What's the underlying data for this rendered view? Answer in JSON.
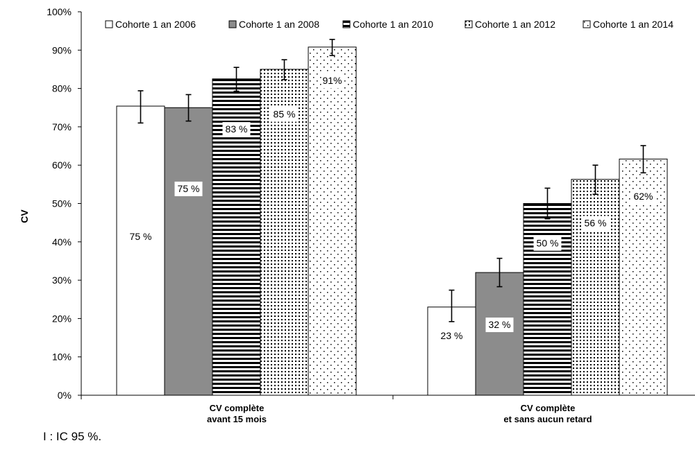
{
  "chart_data": {
    "type": "bar",
    "ylabel": "CV",
    "xlabel": "",
    "ylim": [
      0,
      100
    ],
    "y_ticks": [
      "0%",
      "10%",
      "20%",
      "30%",
      "40%",
      "50%",
      "60%",
      "70%",
      "80%",
      "90%",
      "100%"
    ],
    "categories": [
      [
        "CV complète",
        "avant 15 mois"
      ],
      [
        "CV complète",
        "et sans aucun retard"
      ]
    ],
    "series": [
      {
        "name": "Cohorte 1 an 2006",
        "pattern": "white",
        "values": [
          75.4,
          23.0
        ],
        "ci_low": [
          71.0,
          19.2
        ],
        "ci_high": [
          79.4,
          27.4
        ],
        "labels": [
          "75 %",
          "23 %"
        ]
      },
      {
        "name": "Cohorte 1 an 2008",
        "pattern": "gray",
        "values": [
          75.0,
          32.0
        ],
        "ci_low": [
          71.5,
          28.3
        ],
        "ci_high": [
          78.4,
          35.7
        ],
        "labels": [
          "75 %",
          "32 %"
        ]
      },
      {
        "name": "Cohorte 1 an 2010",
        "pattern": "hstripes",
        "values": [
          82.5,
          50.0
        ],
        "ci_low": [
          79.3,
          46.0
        ],
        "ci_high": [
          85.5,
          54.0
        ],
        "labels": [
          "83 %",
          "50 %"
        ]
      },
      {
        "name": "Cohorte 1 an 2012",
        "pattern": "grid",
        "values": [
          85.0,
          56.3
        ],
        "ci_low": [
          82.3,
          52.4
        ],
        "ci_high": [
          87.5,
          60.0
        ],
        "labels": [
          "85 %",
          "56 %"
        ]
      },
      {
        "name": "Cohorte 1 an 2014",
        "pattern": "dots",
        "values": [
          90.8,
          61.6
        ],
        "ci_low": [
          88.6,
          58.0
        ],
        "ci_high": [
          92.8,
          65.1
        ],
        "labels": [
          "91%",
          "62%"
        ]
      }
    ],
    "legend_position": "top",
    "grid": false,
    "error_bars": true
  },
  "footnote": "I : IC 95 %."
}
